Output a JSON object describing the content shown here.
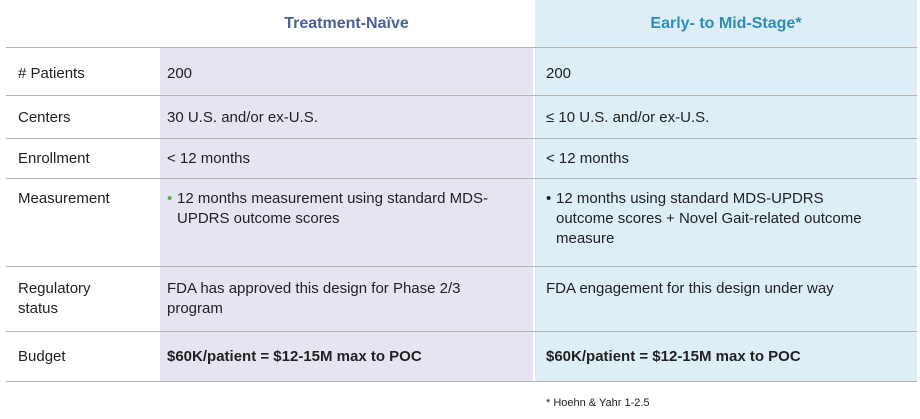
{
  "headers": {
    "col_a": "Treatment-Naïve",
    "col_b": "Early- to Mid-Stage*"
  },
  "rows": [
    {
      "label": "# Patients",
      "a": "200",
      "b": "200"
    },
    {
      "label": "Centers",
      "a": "30 U.S. and/or ex-U.S.",
      "b": "≤ 10 U.S. and/or ex-U.S."
    },
    {
      "label": "Enrollment",
      "a": "< 12 months",
      "b": "< 12 months"
    },
    {
      "label": "Measurement",
      "a": "12 months measurement using standard MDS-UPDRS outcome scores",
      "b": "12 months using standard MDS-UPDRS outcome scores + Novel Gait-related outcome measure"
    },
    {
      "label": "Regulatory status",
      "a": "FDA has approved this design for Phase 2/3 program",
      "b": "FDA engagement for this design under way"
    },
    {
      "label": "Budget",
      "a": "$60K/patient = $12-15M max to POC",
      "b": "$60K/patient = $12-15M max to POC"
    }
  ],
  "bullets": {
    "a": "•",
    "b": "•"
  },
  "colors": {
    "col_a_bg": "#e4e5f1",
    "col_b_bg": "#ddeef6",
    "col_a_head": "#4a5f9e",
    "col_b_head": "#2a8fbd"
  },
  "footnote": "* Hoehn & Yahr 1-2.5"
}
